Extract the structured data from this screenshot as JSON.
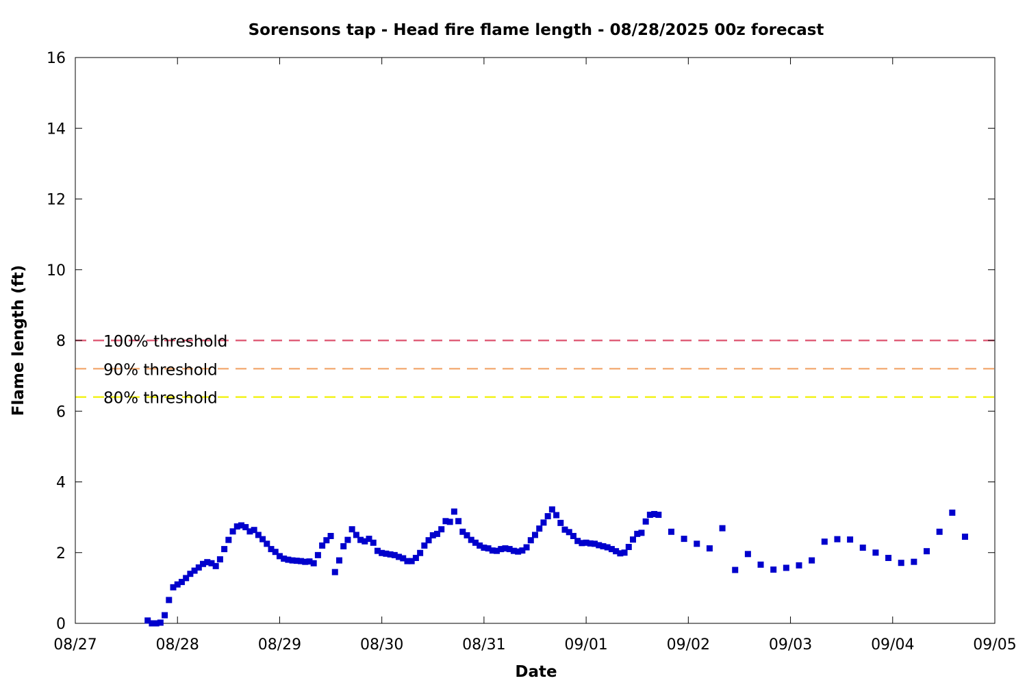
{
  "chart_data": {
    "type": "scatter",
    "title": "Sorensons tap - Head fire flame length - 08/28/2025 00z forecast",
    "xlabel": "Date",
    "ylabel": "Flame length (ft)",
    "xlim": [
      "2025-08-27 00:00",
      "2025-09-05 00:00"
    ],
    "ylim": [
      0,
      16
    ],
    "yticks": [
      0,
      2,
      4,
      6,
      8,
      10,
      12,
      14,
      16
    ],
    "xticks": [
      {
        "date": "2025-08-27",
        "label": "08/27"
      },
      {
        "date": "2025-08-28",
        "label": "08/28"
      },
      {
        "date": "2025-08-29",
        "label": "08/29"
      },
      {
        "date": "2025-08-30",
        "label": "08/30"
      },
      {
        "date": "2025-08-31",
        "label": "08/31"
      },
      {
        "date": "2025-09-01",
        "label": "09/01"
      },
      {
        "date": "2025-09-02",
        "label": "09/02"
      },
      {
        "date": "2025-09-03",
        "label": "09/03"
      },
      {
        "date": "2025-09-04",
        "label": "09/04"
      },
      {
        "date": "2025-09-05",
        "label": "09/05"
      }
    ],
    "grid": false,
    "legend_placement": "left",
    "thresholds": [
      {
        "label": "100% threshold",
        "value": 8.0,
        "color": "#e0607a"
      },
      {
        "label": "90% threshold",
        "value": 7.2,
        "color": "#f4b07c"
      },
      {
        "label": "80% threshold",
        "value": 6.4,
        "color": "#f2f21a"
      }
    ],
    "series": [
      {
        "color": "#0000cc",
        "points": [
          [
            "2025-08-27 17:00",
            0.08
          ],
          [
            "2025-08-27 18:00",
            0.0
          ],
          [
            "2025-08-27 19:00",
            0.0
          ],
          [
            "2025-08-27 20:00",
            0.02
          ],
          [
            "2025-08-27 21:00",
            0.23
          ],
          [
            "2025-08-27 22:00",
            0.66
          ],
          [
            "2025-08-27 23:00",
            1.02
          ],
          [
            "2025-08-28 00:00",
            1.1
          ],
          [
            "2025-08-28 01:00",
            1.17
          ],
          [
            "2025-08-28 02:00",
            1.28
          ],
          [
            "2025-08-28 03:00",
            1.4
          ],
          [
            "2025-08-28 04:00",
            1.49
          ],
          [
            "2025-08-28 05:00",
            1.58
          ],
          [
            "2025-08-28 06:00",
            1.68
          ],
          [
            "2025-08-28 07:00",
            1.73
          ],
          [
            "2025-08-28 08:00",
            1.7
          ],
          [
            "2025-08-28 09:00",
            1.62
          ],
          [
            "2025-08-28 10:00",
            1.81
          ],
          [
            "2025-08-28 11:00",
            2.1
          ],
          [
            "2025-08-28 12:00",
            2.36
          ],
          [
            "2025-08-28 13:00",
            2.6
          ],
          [
            "2025-08-28 14:00",
            2.74
          ],
          [
            "2025-08-28 15:00",
            2.77
          ],
          [
            "2025-08-28 16:00",
            2.72
          ],
          [
            "2025-08-28 17:00",
            2.6
          ],
          [
            "2025-08-28 18:00",
            2.64
          ],
          [
            "2025-08-28 19:00",
            2.5
          ],
          [
            "2025-08-28 20:00",
            2.38
          ],
          [
            "2025-08-28 21:00",
            2.25
          ],
          [
            "2025-08-28 22:00",
            2.1
          ],
          [
            "2025-08-28 23:00",
            2.02
          ],
          [
            "2025-08-29 00:00",
            1.9
          ],
          [
            "2025-08-29 01:00",
            1.83
          ],
          [
            "2025-08-29 02:00",
            1.8
          ],
          [
            "2025-08-29 03:00",
            1.78
          ],
          [
            "2025-08-29 04:00",
            1.77
          ],
          [
            "2025-08-29 05:00",
            1.76
          ],
          [
            "2025-08-29 06:00",
            1.74
          ],
          [
            "2025-08-29 07:00",
            1.75
          ],
          [
            "2025-08-29 08:00",
            1.7
          ],
          [
            "2025-08-29 09:00",
            1.93
          ],
          [
            "2025-08-29 10:00",
            2.2
          ],
          [
            "2025-08-29 11:00",
            2.35
          ],
          [
            "2025-08-29 12:00",
            2.47
          ],
          [
            "2025-08-29 13:00",
            1.45
          ],
          [
            "2025-08-29 14:00",
            1.78
          ],
          [
            "2025-08-29 15:00",
            2.18
          ],
          [
            "2025-08-29 16:00",
            2.36
          ],
          [
            "2025-08-29 17:00",
            2.66
          ],
          [
            "2025-08-29 18:00",
            2.5
          ],
          [
            "2025-08-29 19:00",
            2.36
          ],
          [
            "2025-08-29 20:00",
            2.32
          ],
          [
            "2025-08-29 21:00",
            2.39
          ],
          [
            "2025-08-29 22:00",
            2.28
          ],
          [
            "2025-08-29 23:00",
            2.05
          ],
          [
            "2025-08-30 00:00",
            1.99
          ],
          [
            "2025-08-30 01:00",
            1.97
          ],
          [
            "2025-08-30 02:00",
            1.95
          ],
          [
            "2025-08-30 03:00",
            1.93
          ],
          [
            "2025-08-30 04:00",
            1.88
          ],
          [
            "2025-08-30 05:00",
            1.84
          ],
          [
            "2025-08-30 06:00",
            1.76
          ],
          [
            "2025-08-30 07:00",
            1.76
          ],
          [
            "2025-08-30 08:00",
            1.85
          ],
          [
            "2025-08-30 09:00",
            1.99
          ],
          [
            "2025-08-30 10:00",
            2.2
          ],
          [
            "2025-08-30 11:00",
            2.35
          ],
          [
            "2025-08-30 12:00",
            2.49
          ],
          [
            "2025-08-30 13:00",
            2.53
          ],
          [
            "2025-08-30 14:00",
            2.66
          ],
          [
            "2025-08-30 15:00",
            2.89
          ],
          [
            "2025-08-30 16:00",
            2.87
          ],
          [
            "2025-08-30 17:00",
            3.16
          ],
          [
            "2025-08-30 18:00",
            2.89
          ],
          [
            "2025-08-30 19:00",
            2.59
          ],
          [
            "2025-08-30 20:00",
            2.49
          ],
          [
            "2025-08-30 21:00",
            2.36
          ],
          [
            "2025-08-30 22:00",
            2.28
          ],
          [
            "2025-08-30 23:00",
            2.2
          ],
          [
            "2025-08-31 00:00",
            2.14
          ],
          [
            "2025-08-31 01:00",
            2.12
          ],
          [
            "2025-08-31 02:00",
            2.06
          ],
          [
            "2025-08-31 03:00",
            2.05
          ],
          [
            "2025-08-31 04:00",
            2.1
          ],
          [
            "2025-08-31 05:00",
            2.12
          ],
          [
            "2025-08-31 06:00",
            2.1
          ],
          [
            "2025-08-31 07:00",
            2.05
          ],
          [
            "2025-08-31 08:00",
            2.03
          ],
          [
            "2025-08-31 09:00",
            2.06
          ],
          [
            "2025-08-31 10:00",
            2.15
          ],
          [
            "2025-08-31 11:00",
            2.35
          ],
          [
            "2025-08-31 12:00",
            2.5
          ],
          [
            "2025-08-31 13:00",
            2.68
          ],
          [
            "2025-08-31 14:00",
            2.85
          ],
          [
            "2025-08-31 15:00",
            3.03
          ],
          [
            "2025-08-31 16:00",
            3.22
          ],
          [
            "2025-08-31 17:00",
            3.06
          ],
          [
            "2025-08-31 18:00",
            2.84
          ],
          [
            "2025-08-31 19:00",
            2.65
          ],
          [
            "2025-08-31 20:00",
            2.58
          ],
          [
            "2025-08-31 21:00",
            2.47
          ],
          [
            "2025-08-31 22:00",
            2.33
          ],
          [
            "2025-08-31 23:00",
            2.27
          ],
          [
            "2025-09-01 00:00",
            2.28
          ],
          [
            "2025-09-01 01:00",
            2.26
          ],
          [
            "2025-09-01 02:00",
            2.25
          ],
          [
            "2025-09-01 03:00",
            2.21
          ],
          [
            "2025-09-01 04:00",
            2.18
          ],
          [
            "2025-09-01 05:00",
            2.15
          ],
          [
            "2025-09-01 06:00",
            2.1
          ],
          [
            "2025-09-01 07:00",
            2.04
          ],
          [
            "2025-09-01 08:00",
            1.98
          ],
          [
            "2025-09-01 09:00",
            2.0
          ],
          [
            "2025-09-01 10:00",
            2.16
          ],
          [
            "2025-09-01 11:00",
            2.37
          ],
          [
            "2025-09-01 12:00",
            2.53
          ],
          [
            "2025-09-01 13:00",
            2.56
          ],
          [
            "2025-09-01 14:00",
            2.88
          ],
          [
            "2025-09-01 15:00",
            3.07
          ],
          [
            "2025-09-01 16:00",
            3.09
          ],
          [
            "2025-09-01 17:00",
            3.07
          ],
          [
            "2025-09-01 20:00",
            2.59
          ],
          [
            "2025-09-01 23:00",
            2.39
          ],
          [
            "2025-09-02 02:00",
            2.25
          ],
          [
            "2025-09-02 05:00",
            2.12
          ],
          [
            "2025-09-02 08:00",
            2.69
          ],
          [
            "2025-09-02 11:00",
            1.51
          ],
          [
            "2025-09-02 14:00",
            1.96
          ],
          [
            "2025-09-02 17:00",
            1.66
          ],
          [
            "2025-09-02 20:00",
            1.52
          ],
          [
            "2025-09-02 23:00",
            1.57
          ],
          [
            "2025-09-03 02:00",
            1.64
          ],
          [
            "2025-09-03 05:00",
            1.78
          ],
          [
            "2025-09-03 08:00",
            2.31
          ],
          [
            "2025-09-03 11:00",
            2.38
          ],
          [
            "2025-09-03 14:00",
            2.37
          ],
          [
            "2025-09-03 17:00",
            2.14
          ],
          [
            "2025-09-03 20:00",
            2.0
          ],
          [
            "2025-09-03 23:00",
            1.85
          ],
          [
            "2025-09-04 02:00",
            1.71
          ],
          [
            "2025-09-04 05:00",
            1.74
          ],
          [
            "2025-09-04 08:00",
            2.04
          ],
          [
            "2025-09-04 11:00",
            2.59
          ],
          [
            "2025-09-04 14:00",
            3.13
          ],
          [
            "2025-09-04 17:00",
            2.45
          ]
        ]
      }
    ]
  }
}
